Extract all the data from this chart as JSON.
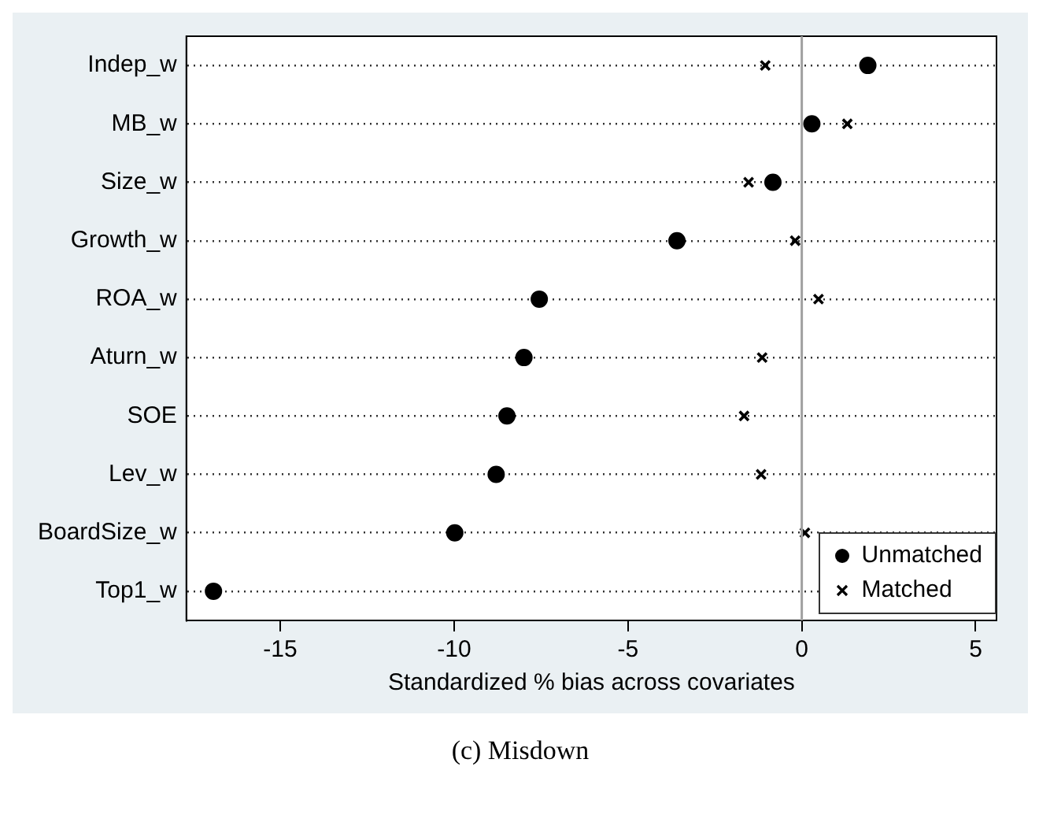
{
  "chart_data": {
    "type": "scatter",
    "xlabel": "Standardized % bias across covariates",
    "categories": [
      "Indep_w",
      "MB_w",
      "Size_w",
      "Growth_w",
      "ROA_w",
      "Aturn_w",
      "SOE",
      "Lev_w",
      "BoardSize_w",
      "Top1_w"
    ],
    "series": [
      {
        "name": "Unmatched",
        "color": "#000000",
        "marker": "circle",
        "values": [
          1.9,
          0.29,
          -0.83,
          -3.59,
          -7.55,
          -7.99,
          -8.48,
          -8.79,
          -9.98,
          -16.92
        ]
      },
      {
        "name": "Matched",
        "color": "#000000",
        "marker": "cross",
        "values": [
          -1.05,
          1.31,
          -1.53,
          -0.19,
          0.48,
          -1.14,
          -1.66,
          -1.17,
          0.09,
          null
        ]
      }
    ],
    "xlim": [
      -17.7,
      5.6
    ],
    "xticks": [
      -15,
      -10,
      -5,
      0,
      5
    ],
    "ref_lines": [
      {
        "axis": "x",
        "value": 0,
        "color": "#a0a0a0"
      }
    ],
    "grid": "y",
    "legend": "bottom right",
    "orientation": "horizontal",
    "annotations": [
      "(c) Misdown"
    ]
  }
}
